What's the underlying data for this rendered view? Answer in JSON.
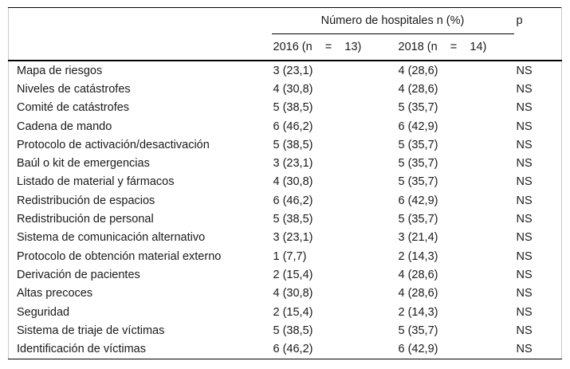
{
  "table": {
    "header": {
      "group_label": "Número de hospitales n (%)",
      "p_label": "p",
      "col_2016": "2016 (n    =    13)",
      "col_2018": "2018 (n    =    14)"
    },
    "rows": [
      {
        "label": "Mapa de riesgos",
        "y2016": "3 (23,1)",
        "y2018": "4 (28,6)",
        "p": "NS"
      },
      {
        "label": "Niveles de catástrofes",
        "y2016": "4 (30,8)",
        "y2018": "4 (28,6)",
        "p": "NS"
      },
      {
        "label": "Comité de catástrofes",
        "y2016": "5 (38,5)",
        "y2018": "5 (35,7)",
        "p": "NS"
      },
      {
        "label": "Cadena de mando",
        "y2016": "6 (46,2)",
        "y2018": "6 (42,9)",
        "p": "NS"
      },
      {
        "label": "Protocolo de activación/desactivación",
        "y2016": "5 (38,5)",
        "y2018": "5 (35,7)",
        "p": "NS"
      },
      {
        "label": "Baúl o kit de emergencias",
        "y2016": "3 (23,1)",
        "y2018": "5 (35,7)",
        "p": "NS"
      },
      {
        "label": "Listado de material y fármacos",
        "y2016": "4 (30,8)",
        "y2018": "5 (35,7)",
        "p": "NS"
      },
      {
        "label": "Redistribución de espacios",
        "y2016": "6 (46,2)",
        "y2018": "6 (42,9)",
        "p": "NS"
      },
      {
        "label": "Redistribución de personal",
        "y2016": "5 (38,5)",
        "y2018": "5 (35,7)",
        "p": "NS"
      },
      {
        "label": "Sistema de comunicación alternativo",
        "y2016": "3 (23,1)",
        "y2018": "3 (21,4)",
        "p": "NS"
      },
      {
        "label": "Protocolo de obtención material externo",
        "y2016": "1 (7,7)",
        "y2018": "2 (14,3)",
        "p": "NS"
      },
      {
        "label": "Derivación de pacientes",
        "y2016": "2 (15,4)",
        "y2018": "4 (28,6)",
        "p": "NS"
      },
      {
        "label": "Altas precoces",
        "y2016": "4 (30,8)",
        "y2018": "4 (28,6)",
        "p": "NS"
      },
      {
        "label": "Seguridad",
        "y2016": "2 (15,4)",
        "y2018": "2 (14,3)",
        "p": "NS"
      },
      {
        "label": "Sistema de triaje de víctimas",
        "y2016": "5 (38,5)",
        "y2018": "5 (35,7)",
        "p": "NS"
      },
      {
        "label": "Identificación de víctimas",
        "y2016": "6 (46,2)",
        "y2018": "6 (42,9)",
        "p": "NS"
      }
    ]
  }
}
